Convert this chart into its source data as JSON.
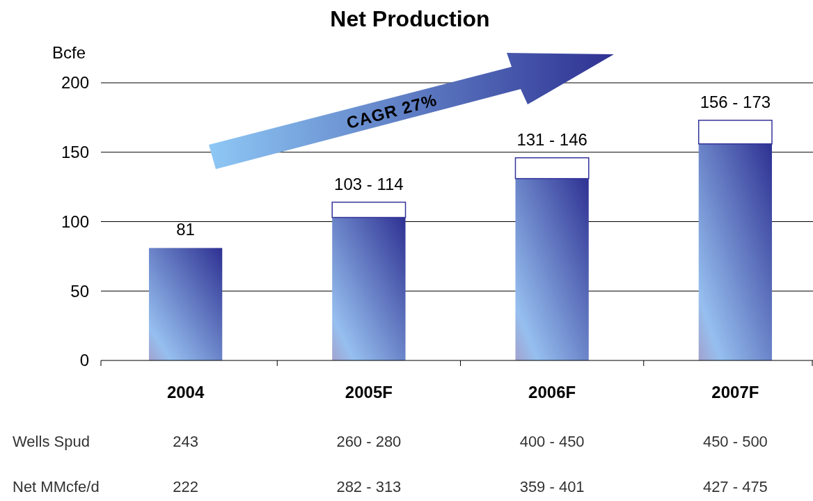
{
  "chart_data": {
    "type": "bar",
    "title": "Net Production",
    "ylabel": "Bcfe",
    "categories": [
      "2004",
      "2005F",
      "2006F",
      "2007F"
    ],
    "stacked": true,
    "series": [
      {
        "values": [
          81,
          103,
          131,
          156
        ],
        "color": "#2e3192"
      },
      {
        "values": [
          0,
          11,
          15,
          17
        ],
        "color": "#ffffff"
      }
    ],
    "ylim": [
      0,
      200
    ],
    "yticks": [
      0,
      50,
      100,
      150,
      200
    ],
    "grid": "y",
    "totals": [
      "81",
      "103 - 114",
      "131 - 146",
      "156 - 173"
    ],
    "annotations": [
      "CAGR 27%",
      "Wells Spud",
      "243",
      "260 - 280",
      "400 - 450",
      "450 - 500",
      "Net MMcfe/d",
      "222",
      "282 - 313",
      "359 - 401",
      "427 - 475"
    ]
  }
}
